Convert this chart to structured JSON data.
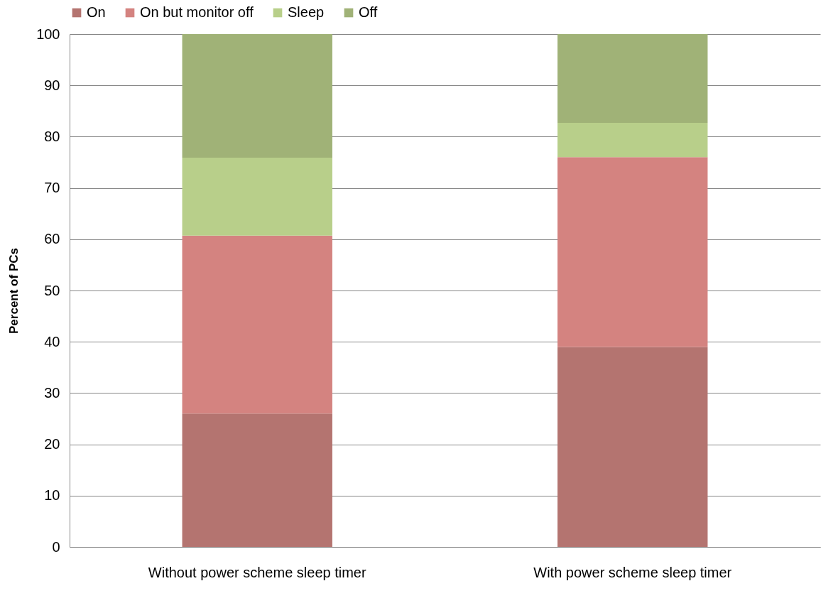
{
  "chart_data": {
    "type": "bar",
    "stacked": true,
    "ylabel": "Percent of PCs",
    "categories": [
      "Without power scheme sleep timer",
      "With power scheme sleep timer"
    ],
    "series": [
      {
        "name": "On",
        "color": "#b47470",
        "values": [
          26,
          39
        ]
      },
      {
        "name": "On but monitor off",
        "color": "#d48380",
        "values": [
          34.7,
          37
        ]
      },
      {
        "name": "Sleep",
        "color": "#b8cf8a",
        "values": [
          15.2,
          6.7
        ]
      },
      {
        "name": "Off",
        "color": "#a0b277",
        "values": [
          24.1,
          17.3
        ]
      }
    ],
    "ylim": [
      0,
      100
    ],
    "yticks": [
      0,
      10,
      20,
      30,
      40,
      50,
      60,
      70,
      80,
      90,
      100
    ],
    "grid": "y",
    "legend": "top"
  }
}
